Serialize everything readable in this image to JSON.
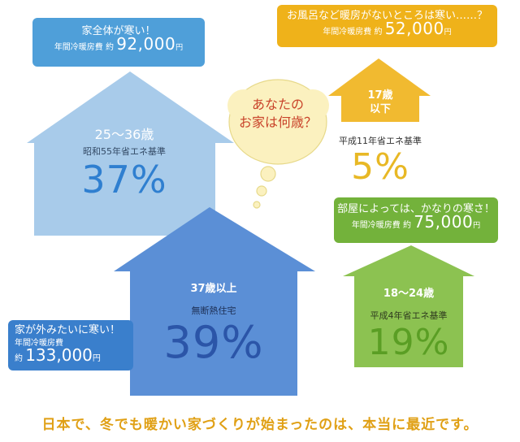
{
  "colors": {
    "blue_light": "#a8cbea",
    "blue_mid": "#5b8fd6",
    "orange": "#efb21a",
    "green": "#8cc251",
    "red_text": "#c9442b",
    "footer": "#e0a015"
  },
  "cloud": {
    "line1": "あなたの",
    "line2": "お家は何歳？"
  },
  "houses": {
    "h1": {
      "age": "25～36歳",
      "standard": "昭和55年省エネ基準",
      "percent": "37%"
    },
    "h2": {
      "age_line1": "17歳",
      "age_line2": "以下",
      "standard": "平成11年省エネ基準",
      "percent": "5%"
    },
    "h3": {
      "age": "37歳以上",
      "standard": "無断熱住宅",
      "percent": "39%"
    },
    "h4": {
      "age": "18～24歳",
      "standard": "平成4年省エネ基準",
      "percent": "19%"
    }
  },
  "bubbles": {
    "b1": {
      "title": "家全体が寒い！",
      "label": "年間冷暖房費",
      "approx": "約",
      "amount": "92,000",
      "unit": "円"
    },
    "b2": {
      "title": "お風呂など暖房がないところは寒い……？",
      "label": "年間冷暖房費",
      "approx": "約",
      "amount": "52,000",
      "unit": "円"
    },
    "b3": {
      "title": "部屋によっては、かなりの寒さ！",
      "label": "年間冷暖房費",
      "approx": "約",
      "amount": "75,000",
      "unit": "円"
    },
    "b4": {
      "title": "家が外みたいに寒い！",
      "label": "年間冷暖房費",
      "approx": "約",
      "amount": "133,000",
      "unit": "円"
    }
  },
  "footer": "日本で、冬でも暖かい家づくりが始まったのは、本当に最近です。"
}
